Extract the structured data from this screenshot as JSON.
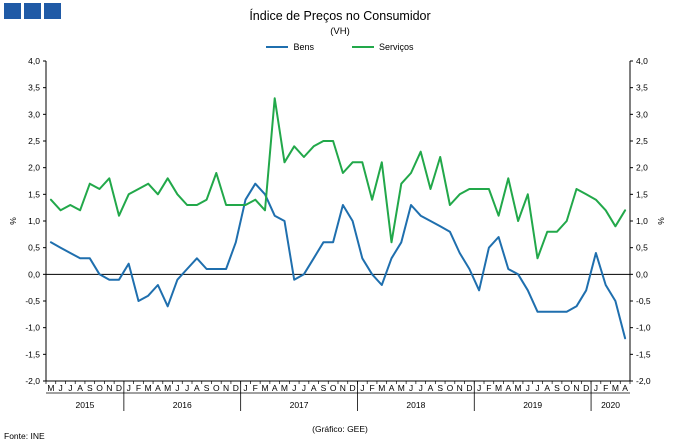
{
  "chart_data": {
    "type": "line",
    "title": "Índice de Preços no Consumidor",
    "subtitle": "(VH)",
    "ylabel_left": "%",
    "ylabel_right": "%",
    "ylim": [
      -2.0,
      4.0
    ],
    "yticks": [
      "4,0",
      "3,5",
      "3,0",
      "2,5",
      "2,0",
      "1,5",
      "1,0",
      "0,5",
      "0,0",
      "-0,5",
      "-1,0",
      "-1,5",
      "-2,0"
    ],
    "y_tick_values": [
      4.0,
      3.5,
      3.0,
      2.5,
      2.0,
      1.5,
      1.0,
      0.5,
      0.0,
      -0.5,
      -1.0,
      -1.5,
      -2.0
    ],
    "months": [
      "M",
      "J",
      "J",
      "A",
      "S",
      "O",
      "N",
      "D",
      "J",
      "F",
      "M",
      "A",
      "M",
      "J",
      "J",
      "A",
      "S",
      "O",
      "N",
      "D",
      "J",
      "F",
      "M",
      "A",
      "M",
      "J",
      "J",
      "A",
      "S",
      "O",
      "N",
      "D",
      "J",
      "F",
      "M",
      "A",
      "M",
      "J",
      "J",
      "A",
      "S",
      "O",
      "N",
      "D",
      "J",
      "F",
      "M",
      "A",
      "M",
      "J",
      "J",
      "A",
      "S",
      "O",
      "N",
      "D",
      "J",
      "F",
      "M",
      "A"
    ],
    "years": [
      {
        "label": "2015",
        "start": 0,
        "end": 7
      },
      {
        "label": "2016",
        "start": 8,
        "end": 19
      },
      {
        "label": "2017",
        "start": 20,
        "end": 31
      },
      {
        "label": "2018",
        "start": 32,
        "end": 43
      },
      {
        "label": "2019",
        "start": 44,
        "end": 55
      },
      {
        "label": "2020",
        "start": 56,
        "end": 59
      }
    ],
    "series": [
      {
        "name": "Bens",
        "color": "#1f6fae",
        "values": [
          0.6,
          0.5,
          0.4,
          0.3,
          0.3,
          0.0,
          -0.1,
          -0.1,
          0.2,
          -0.5,
          -0.4,
          -0.2,
          -0.6,
          -0.1,
          0.1,
          0.3,
          0.1,
          0.1,
          0.1,
          0.6,
          1.4,
          1.7,
          1.5,
          1.1,
          1.0,
          -0.1,
          0.0,
          0.3,
          0.6,
          0.6,
          1.3,
          1.0,
          0.3,
          0.0,
          -0.2,
          0.3,
          0.6,
          1.3,
          1.1,
          1.0,
          0.9,
          0.8,
          0.4,
          0.1,
          -0.3,
          0.5,
          0.7,
          0.1,
          0.0,
          -0.3,
          -0.7,
          -0.7,
          -0.7,
          -0.7,
          -0.6,
          -0.3,
          0.4,
          -0.2,
          -0.5,
          -1.2
        ]
      },
      {
        "name": "Serviços",
        "color": "#22a84a",
        "values": [
          1.4,
          1.2,
          1.3,
          1.2,
          1.7,
          1.6,
          1.8,
          1.1,
          1.5,
          1.6,
          1.7,
          1.5,
          1.8,
          1.5,
          1.3,
          1.3,
          1.4,
          1.9,
          1.3,
          1.3,
          1.3,
          1.4,
          1.2,
          3.3,
          2.1,
          2.4,
          2.2,
          2.4,
          2.5,
          2.5,
          1.9,
          2.1,
          2.1,
          1.4,
          2.1,
          0.6,
          1.7,
          1.9,
          2.3,
          1.6,
          2.2,
          1.3,
          1.5,
          1.6,
          1.6,
          1.6,
          1.1,
          1.8,
          1.0,
          1.5,
          0.3,
          0.8,
          0.8,
          1.0,
          1.6,
          1.5,
          1.4,
          1.2,
          0.9,
          1.2
        ]
      }
    ],
    "legend_position": "top-center",
    "grid": false
  },
  "footer": {
    "source": "Fonte: INE",
    "credit": "(Gráfico: GEE)"
  }
}
